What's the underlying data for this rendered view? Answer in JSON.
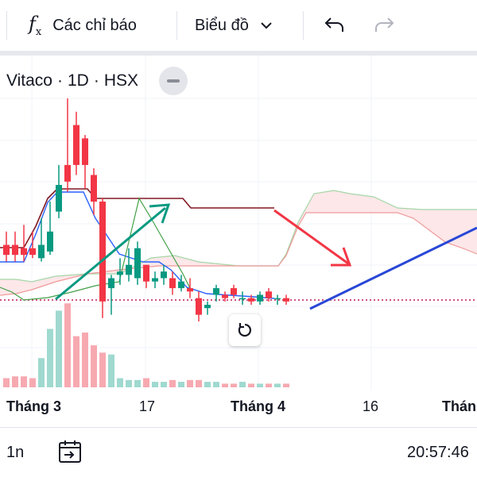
{
  "toolbar": {
    "indicators_label": "Các chỉ báo",
    "chart_type_label": "Biểu đồ",
    "icons": [
      "function-icon",
      "chevron-down-icon",
      "undo-icon",
      "redo-icon"
    ]
  },
  "legend": {
    "symbol": "Vitaco",
    "interval": "1D",
    "exchange": "HSX",
    "separator": "·"
  },
  "time_axis": {
    "labels": [
      "Tháng 3",
      "17",
      "Tháng 4",
      "16",
      "Thán"
    ]
  },
  "bottom_bar": {
    "range_label": "1n",
    "clock": "20:57:46"
  },
  "colors": {
    "up": "#089981",
    "down": "#f23645",
    "volume_up": "#9fd9cf",
    "volume_down": "#f7a9b0",
    "conversion_line": "#2962ff",
    "base_line": "#801922",
    "lagging_span": "#43a047",
    "cloud_up": "#a5d6a7",
    "cloud_down": "#ef9a9a",
    "drawing_arrow_up": "#089981",
    "drawing_arrow_down": "#f23645",
    "drawing_trend_line": "#2947d6",
    "last_price_line": "#c2185b"
  },
  "chart_data": {
    "type": "candlestick",
    "symbol": "Vitaco",
    "interval": "1D",
    "indicators": [
      "Ichimoku Cloud",
      "Volume"
    ],
    "x_labels": [
      "Tháng 3",
      "17",
      "Tháng 4",
      "16",
      "Thán"
    ],
    "candles": [
      {
        "o": 34.6,
        "h": 35.0,
        "c": 34.3,
        "l": 34.1
      },
      {
        "o": 34.6,
        "h": 35.0,
        "c": 34.3,
        "l": 34.1
      },
      {
        "o": 34.5,
        "h": 35.2,
        "c": 34.3,
        "l": 34.1
      },
      {
        "o": 34.5,
        "h": 35.0,
        "c": 34.3,
        "l": 34.2
      },
      {
        "o": 34.2,
        "h": 35.4,
        "c": 34.6,
        "l": 34.1
      },
      {
        "o": 34.4,
        "h": 35.9,
        "c": 35.0,
        "l": 34.3
      },
      {
        "o": 35.6,
        "h": 37.0,
        "c": 36.4,
        "l": 35.4
      },
      {
        "o": 37.0,
        "h": 39.0,
        "c": 36.5,
        "l": 36.2
      },
      {
        "o": 38.2,
        "h": 38.6,
        "c": 37.0,
        "l": 36.7
      },
      {
        "o": 37.8,
        "h": 37.9,
        "c": 37.0,
        "l": 36.3
      },
      {
        "o": 36.7,
        "h": 36.9,
        "c": 35.9,
        "l": 35.5
      },
      {
        "o": 35.9,
        "h": 36.0,
        "c": 32.9,
        "l": 32.4
      },
      {
        "o": 33.3,
        "h": 33.7,
        "c": 33.6,
        "l": 32.5
      },
      {
        "o": 33.7,
        "h": 34.2,
        "c": 33.8,
        "l": 33.4
      },
      {
        "o": 33.7,
        "h": 34.5,
        "c": 34.0,
        "l": 33.5
      },
      {
        "o": 33.6,
        "h": 34.7,
        "c": 34.5,
        "l": 33.4
      },
      {
        "o": 34.0,
        "h": 34.0,
        "c": 33.5,
        "l": 33.3
      },
      {
        "o": 33.5,
        "h": 33.8,
        "c": 33.6,
        "l": 33.3
      },
      {
        "o": 33.6,
        "h": 34.0,
        "c": 33.8,
        "l": 33.4
      },
      {
        "o": 33.6,
        "h": 33.8,
        "c": 33.3,
        "l": 33.1
      },
      {
        "o": 33.3,
        "h": 33.7,
        "c": 33.5,
        "l": 33.2
      },
      {
        "o": 33.3,
        "h": 33.6,
        "c": 33.2,
        "l": 33.0
      },
      {
        "o": 33.0,
        "h": 33.2,
        "c": 32.5,
        "l": 32.3
      },
      {
        "o": 32.7,
        "h": 32.9,
        "c": 32.8,
        "l": 32.5
      },
      {
        "o": 33.1,
        "h": 33.4,
        "c": 33.3,
        "l": 32.9
      },
      {
        "o": 33.1,
        "h": 33.2,
        "c": 33.0,
        "l": 32.9
      },
      {
        "o": 33.3,
        "h": 33.4,
        "c": 33.1,
        "l": 33.0
      },
      {
        "o": 33.0,
        "h": 33.2,
        "c": 33.0,
        "l": 32.8
      },
      {
        "o": 33.0,
        "h": 33.1,
        "c": 32.9,
        "l": 32.8
      },
      {
        "o": 32.9,
        "h": 33.2,
        "c": 33.1,
        "l": 32.8
      },
      {
        "o": 33.2,
        "h": 33.3,
        "c": 33.0,
        "l": 32.9
      },
      {
        "o": 33.0,
        "h": 33.1,
        "c": 33.0,
        "l": 32.8
      },
      {
        "o": 33.0,
        "h": 33.1,
        "c": 32.9,
        "l": 32.8
      }
    ],
    "volume": [
      0.5,
      0.6,
      0.6,
      0.5,
      1.6,
      3.2,
      4.2,
      4.6,
      2.8,
      3.0,
      2.3,
      1.9,
      1.8,
      0.5,
      0.4,
      0.4,
      0.5,
      0.3,
      0.3,
      0.4,
      0.3,
      0.4,
      0.4,
      0.3,
      0.3,
      0.2,
      0.2,
      0.3,
      0.2,
      0.2,
      0.2,
      0.2,
      0.2
    ]
  }
}
